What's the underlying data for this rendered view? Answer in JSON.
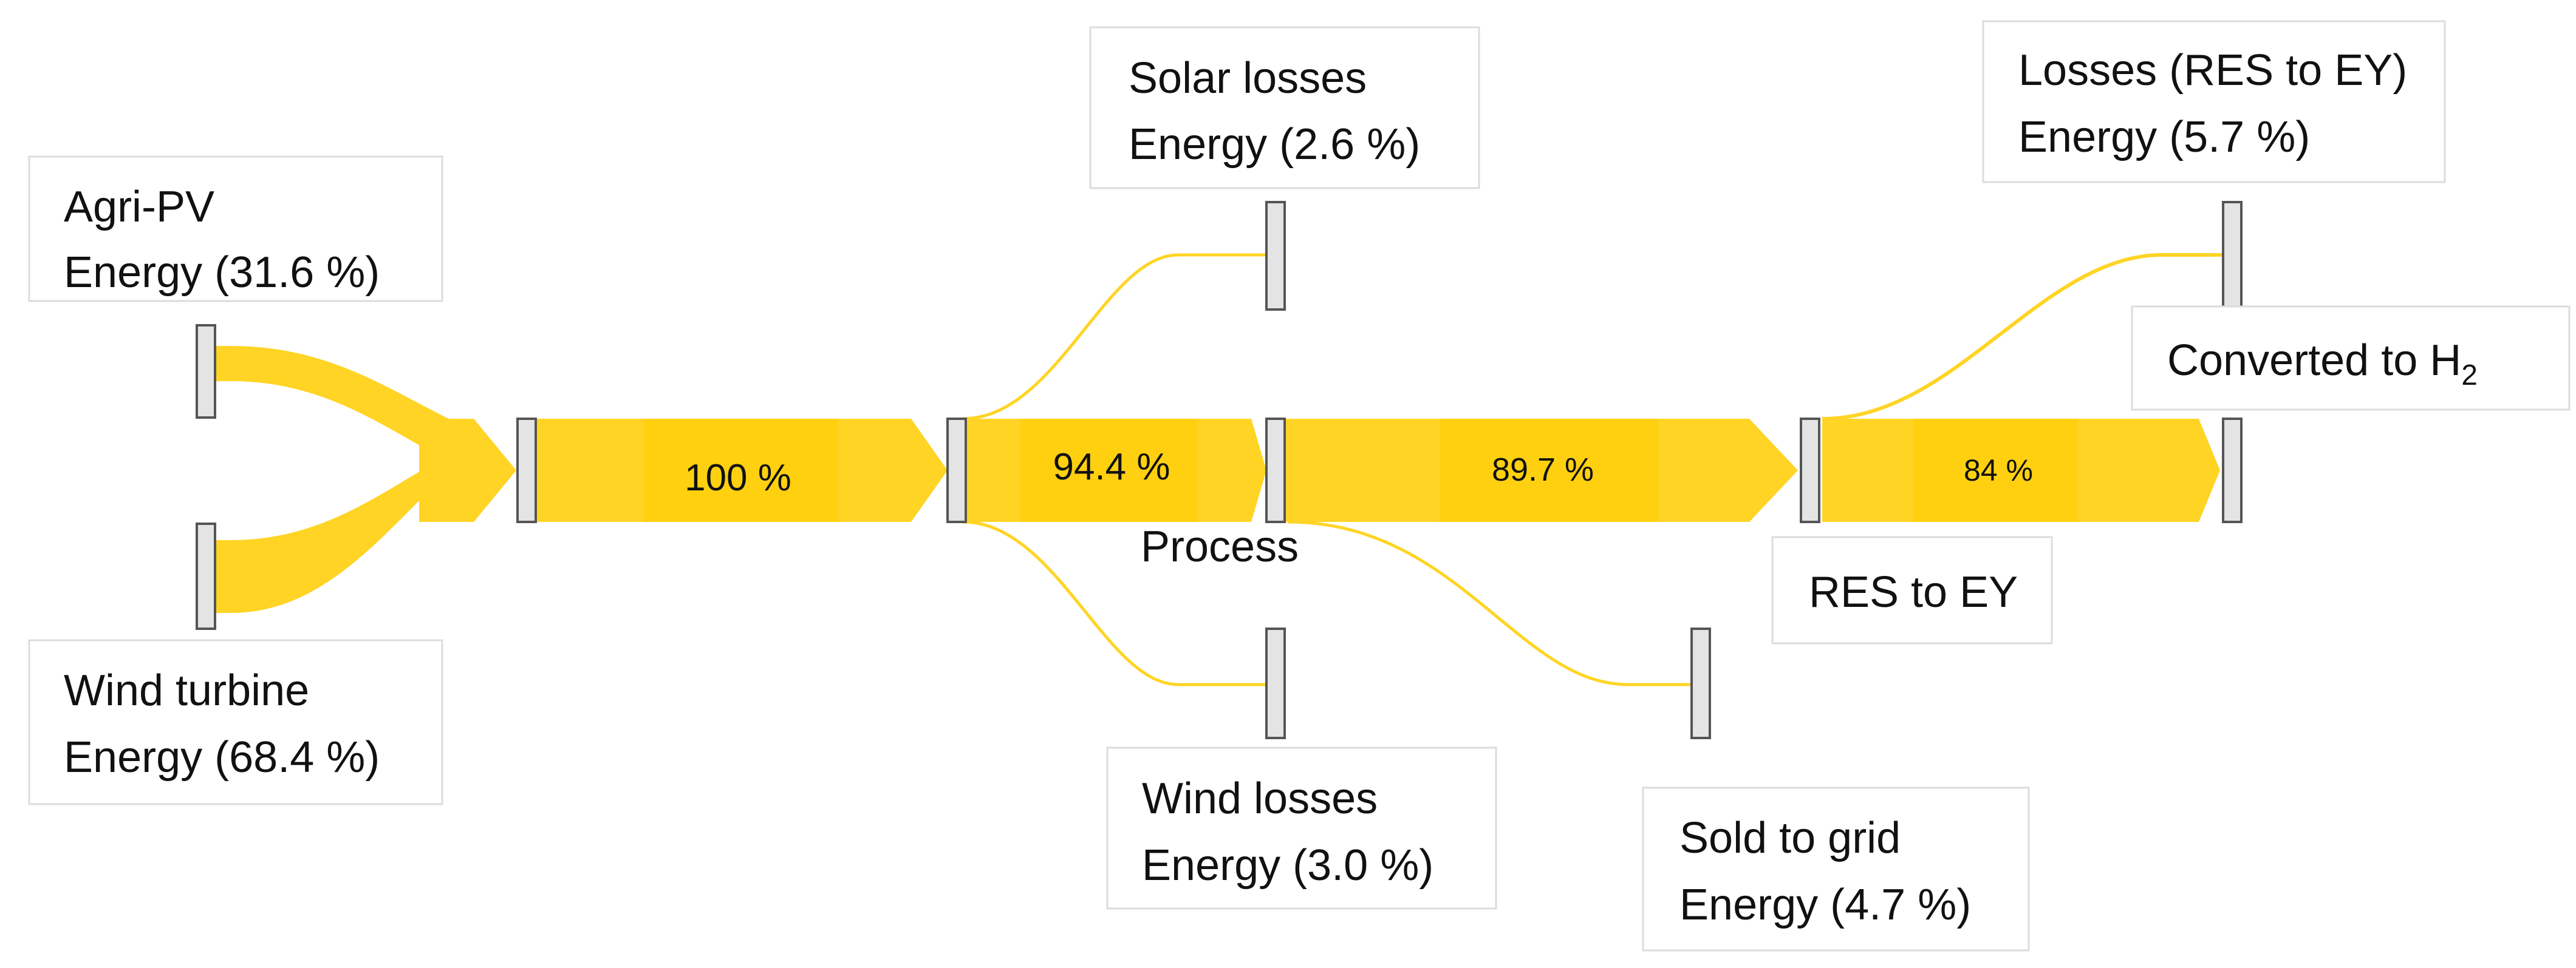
{
  "colors": {
    "flow": "#ffd424",
    "flow_band": "#ffcc00",
    "node_fill": "#e4e4e4",
    "node_stroke": "#555555",
    "box_stroke": "#dcdcdc",
    "text": "#111111"
  },
  "labels": {
    "agri_pv": {
      "line1": "Agri-PV",
      "line2": "Energy (31.6 %)"
    },
    "wind_turbine": {
      "line1": "Wind turbine",
      "line2": "Energy (68.4 %)"
    },
    "solar_losses": {
      "line1": "Solar losses",
      "line2": "Energy (2.6 %)"
    },
    "wind_losses": {
      "line1": "Wind losses",
      "line2": "Energy (3.0 %)"
    },
    "process": "Process",
    "sold_to_grid": {
      "line1": "Sold to grid",
      "line2": "Energy (4.7 %)"
    },
    "res_to_ey": "RES to EY",
    "losses_res_ey": {
      "line1": "Losses (RES to EY)",
      "line2": "Energy (5.7 %)"
    },
    "converted": {
      "text": "Converted to H",
      "subscript": "2"
    }
  },
  "flows": {
    "stage1": {
      "label": "100 %",
      "value": 100
    },
    "stage2": {
      "label": "94.4 %",
      "value": 94.4
    },
    "stage3": {
      "label": "89.7 %",
      "value": 89.7
    },
    "stage4": {
      "label": "84 %",
      "value": 84
    },
    "agri_pv": 31.6,
    "wind_turbine": 68.4,
    "solar_losses": 2.6,
    "wind_losses": 3.0,
    "sold_to_grid": 4.7,
    "losses_res_ey": 5.7
  }
}
